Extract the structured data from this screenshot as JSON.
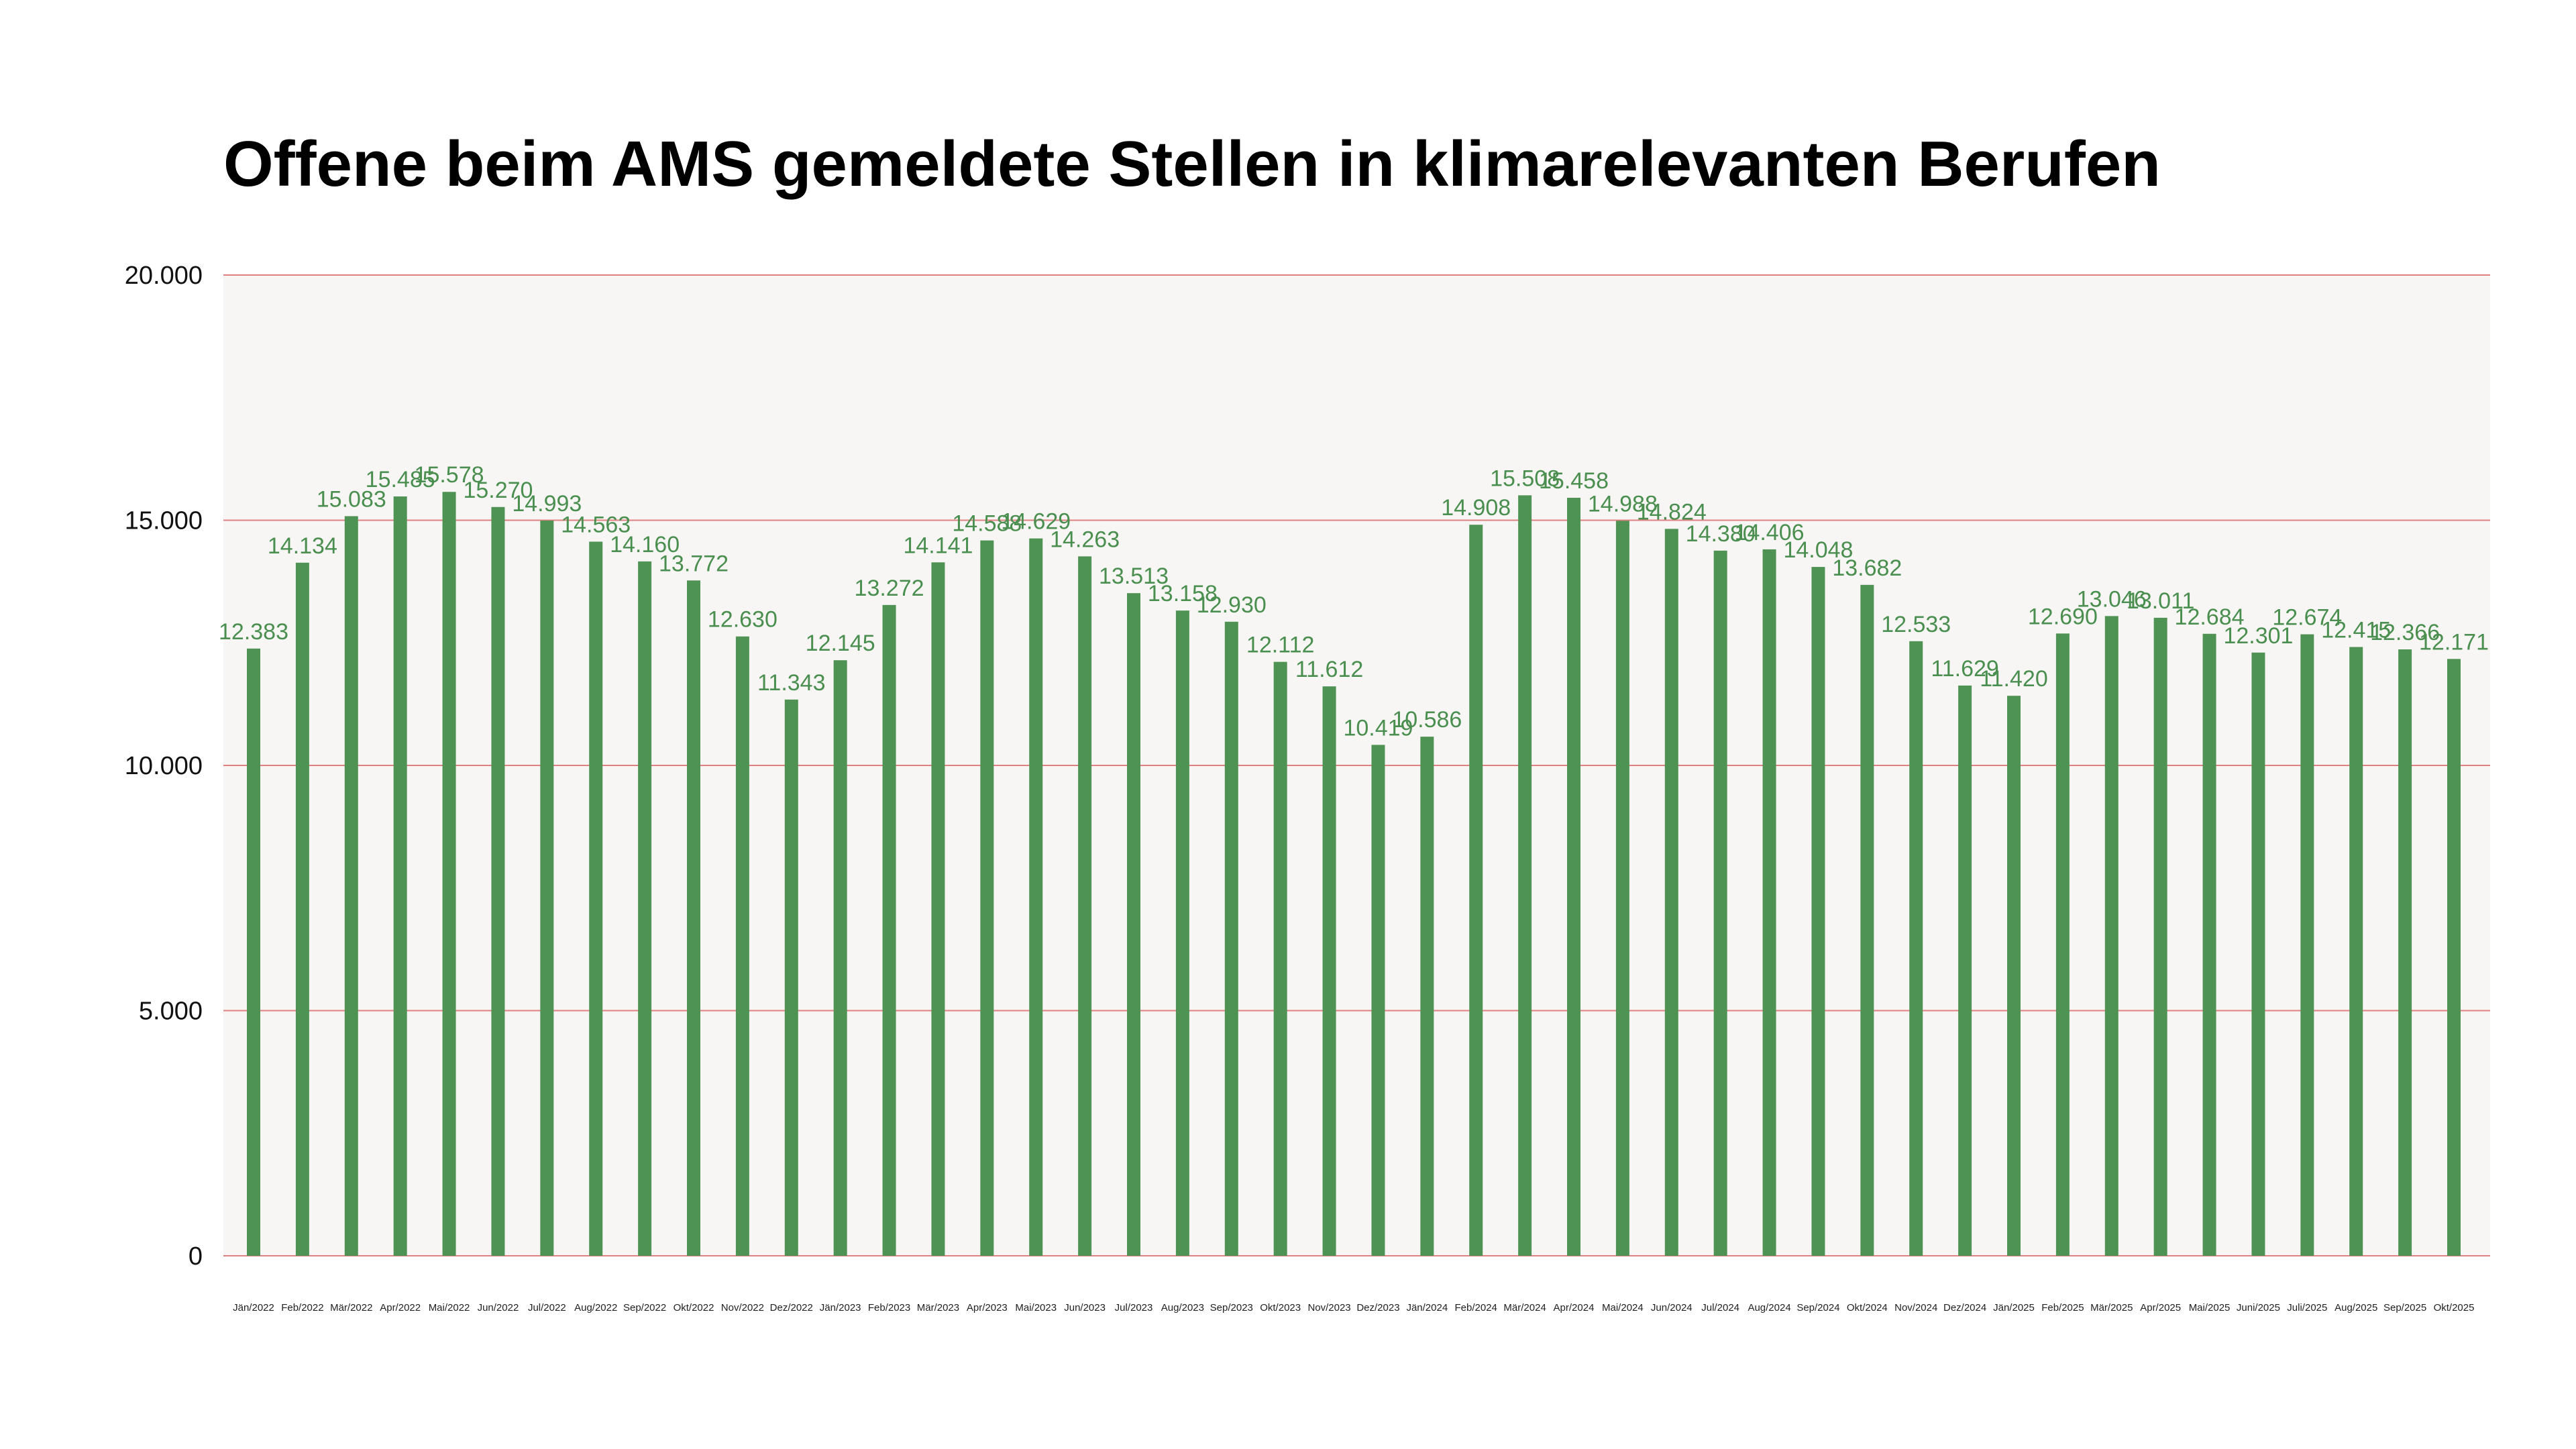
{
  "colors": {
    "bar": "#4f9354",
    "label": "#4a8f4f",
    "grid": "#e08080",
    "plot_bg": "#f8f6f5",
    "page_bg": "#ffffff"
  },
  "chart_data": {
    "type": "bar",
    "title": "Offene beim AMS gemeldete Stellen in klimarelevanten Berufen",
    "xlabel": "",
    "ylabel": "",
    "ylim": [
      0,
      20000
    ],
    "yticks": [
      0,
      5000,
      10000,
      15000,
      20000
    ],
    "ytick_labels": [
      "0",
      "5.000",
      "10.000",
      "15.000",
      "20.000"
    ],
    "grid": true,
    "categories": [
      "Jän/2022",
      "Feb/2022",
      "Mär/2022",
      "Apr/2022",
      "Mai/2022",
      "Jun/2022",
      "Jul/2022",
      "Aug/2022",
      "Sep/2022",
      "Okt/2022",
      "Nov/2022",
      "Dez/2022",
      "Jän/2023",
      "Feb/2023",
      "Mär/2023",
      "Apr/2023",
      "Mai/2023",
      "Jun/2023",
      "Jul/2023",
      "Aug/2023",
      "Sep/2023",
      "Okt/2023",
      "Nov/2023",
      "Dez/2023",
      "Jän/2024",
      "Feb/2024",
      "Mär/2024",
      "Apr/2024",
      "Mai/2024",
      "Jun/2024",
      "Jul/2024",
      "Aug/2024",
      "Sep/2024",
      "Okt/2024",
      "Nov/2024",
      "Dez/2024",
      "Jän/2025",
      "Feb/2025",
      "Mär/2025",
      "Apr/2025",
      "Mai/2025",
      "Juni/2025",
      "Juli/2025",
      "Aug/2025",
      "Sep/2025",
      "Okt/2025"
    ],
    "values": [
      12383,
      14134,
      15083,
      15485,
      15578,
      15270,
      14993,
      14563,
      14160,
      13772,
      12630,
      11343,
      12145,
      13272,
      14141,
      14588,
      14629,
      14263,
      13513,
      13158,
      12930,
      12112,
      11612,
      10419,
      10586,
      14908,
      15508,
      15458,
      14988,
      14824,
      14380,
      14406,
      14048,
      13682,
      12533,
      11629,
      11420,
      12690,
      13046,
      13011,
      12684,
      12301,
      12674,
      12415,
      12366,
      12171
    ],
    "value_labels": [
      "12.383",
      "14.134",
      "15.083",
      "15.485",
      "15.578",
      "15.270",
      "14.993",
      "14.563",
      "14.160",
      "13.772",
      "12.630",
      "11.343",
      "12.145",
      "13.272",
      "14.141",
      "14.588",
      "14.629",
      "14.263",
      "13.513",
      "13.158",
      "12.930",
      "12.112",
      "11.612",
      "10.419",
      "10.586",
      "14.908",
      "15.508",
      "15.458",
      "14.988",
      "14.824",
      "14.380",
      "14.406",
      "14.048",
      "13.682",
      "12.533",
      "11.629",
      "11.420",
      "12.690",
      "13.046",
      "13.011",
      "12.684",
      "12.301",
      "12.674",
      "12.415",
      "12.366",
      "12.171"
    ]
  }
}
